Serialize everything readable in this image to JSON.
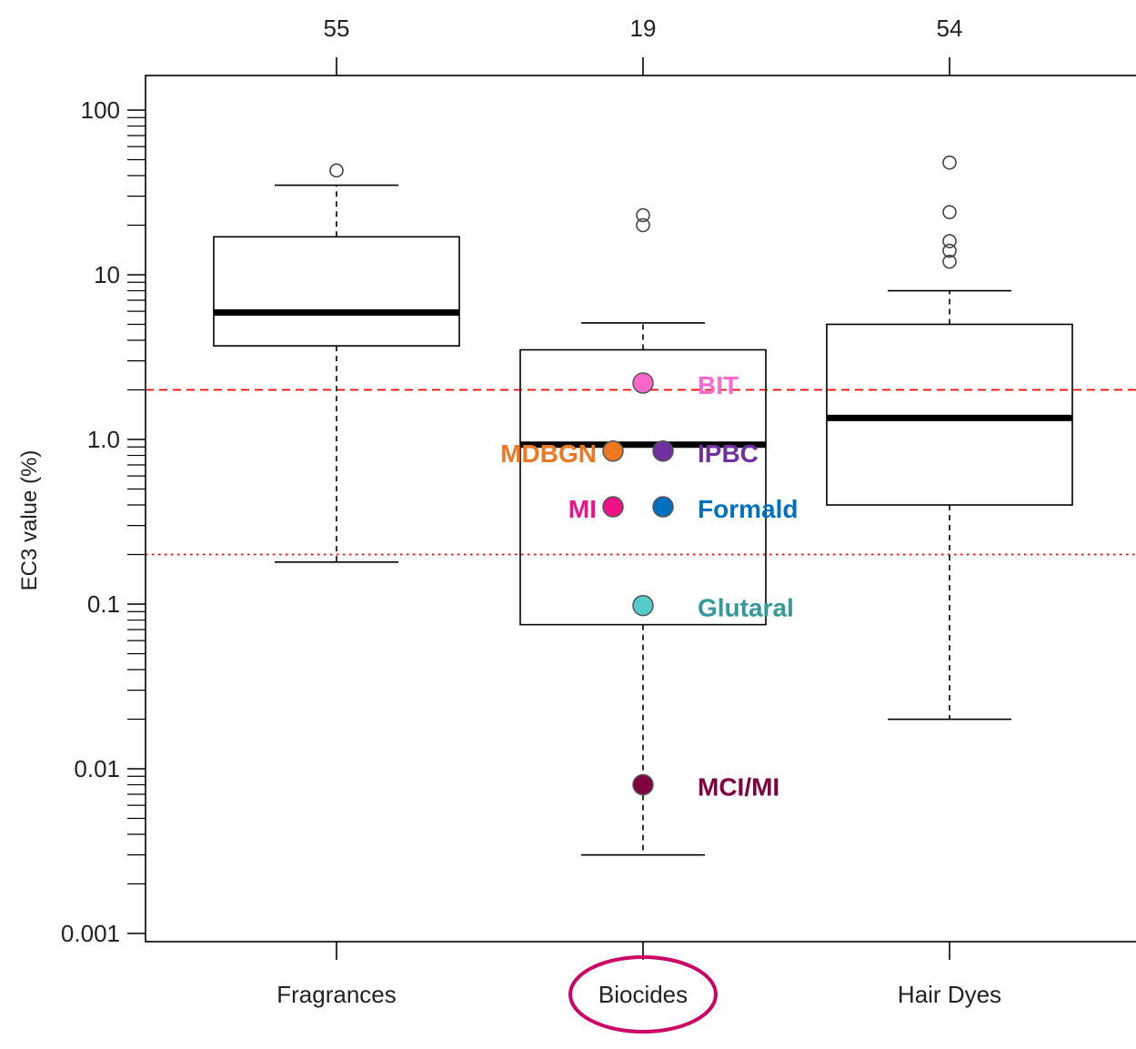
{
  "chart_data": {
    "type": "box",
    "ylabel": "EC3 value (%)",
    "y_scale": "log10",
    "ylim": [
      0.001,
      100
    ],
    "y_ticks": [
      {
        "value": 0.001,
        "label": "0.001"
      },
      {
        "value": 0.01,
        "label": "0.01"
      },
      {
        "value": 0.1,
        "label": "0.1"
      },
      {
        "value": 1,
        "label": "1.0"
      },
      {
        "value": 10,
        "label": "10"
      },
      {
        "value": 100,
        "label": "100"
      }
    ],
    "categories": [
      "Fragrances",
      "Biocides",
      "Hair Dyes"
    ],
    "highlighted_category": "Biocides",
    "highlight_color": "#cc0066",
    "counts": [
      "55",
      "19",
      "54"
    ],
    "boxes": [
      {
        "category": "Fragrances",
        "whisker_low": 0.18,
        "q1": 3.7,
        "median": 5.9,
        "q3": 17,
        "whisker_high": 35,
        "outliers": [
          43
        ]
      },
      {
        "category": "Biocides",
        "whisker_low": 0.003,
        "q1": 0.075,
        "median": 0.93,
        "q3": 3.5,
        "whisker_high": 5.1,
        "outliers": [
          20,
          23
        ]
      },
      {
        "category": "Hair Dyes",
        "whisker_low": 0.02,
        "q1": 0.4,
        "median": 1.35,
        "q3": 5.0,
        "whisker_high": 8.0,
        "outliers": [
          12,
          14,
          16,
          24,
          48
        ]
      }
    ],
    "reference_lines": [
      {
        "value": 2.0,
        "style": "dashed",
        "color": "#ff0000"
      },
      {
        "value": 0.2,
        "style": "dotted",
        "color": "#ff0000"
      }
    ],
    "highlighted_points": [
      {
        "label": "BIT",
        "value": 2.2,
        "color": "#ff66cc",
        "side": "right",
        "offset": 0
      },
      {
        "label": "MDBGN",
        "value": 0.85,
        "color": "#ee7722",
        "side": "left",
        "offset": -0.6
      },
      {
        "label": "IPBC",
        "value": 0.85,
        "color": "#7030a0",
        "side": "right",
        "offset": 0.4
      },
      {
        "label": "MI",
        "value": 0.39,
        "color": "#ee1188",
        "side": "left",
        "offset": -0.6
      },
      {
        "label": "Formald",
        "value": 0.39,
        "color": "#0070c0",
        "side": "right",
        "offset": 0.4
      },
      {
        "label": "Glutaral",
        "value": 0.098,
        "color": "#55cccc",
        "label_color": "#339999",
        "side": "right",
        "offset": 0
      },
      {
        "label": "MCI/MI",
        "value": 0.008,
        "color": "#800040",
        "side": "right",
        "offset": 0
      }
    ]
  }
}
